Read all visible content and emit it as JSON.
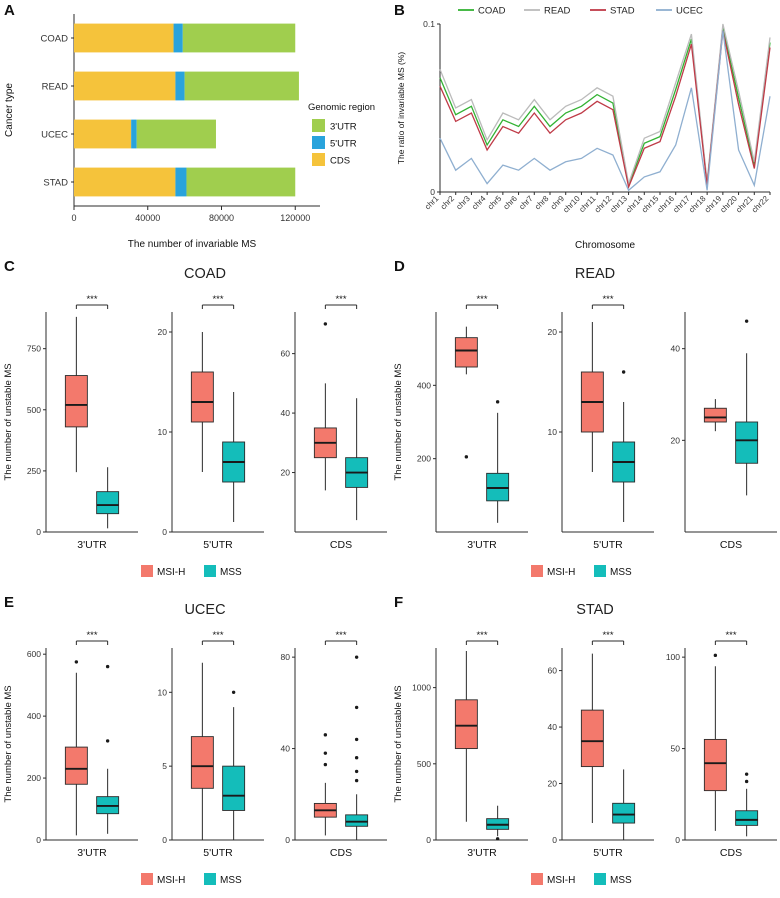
{
  "colors": {
    "msi_h": "#F3796C",
    "mss": "#14BDBA",
    "utr3": "#A0CE4E",
    "utr5": "#29A3DC",
    "cds": "#F5C33B",
    "axis": "#2b2b2b"
  },
  "chart_data": [
    {
      "panel": "A",
      "type": "stacked_bar_h",
      "xlabel": "The number of invariable MS",
      "ylabel": "Cancer type",
      "legend_title": "Genomic region",
      "legend_order": [
        "3'UTR",
        "5'UTR",
        "CDS"
      ],
      "categories": [
        "COAD",
        "READ",
        "UCEC",
        "STAD"
      ],
      "series": [
        {
          "name": "CDS",
          "color": "#F5C33B",
          "values": [
            54000,
            55000,
            31000,
            55000
          ]
        },
        {
          "name": "5'UTR",
          "color": "#29A3DC",
          "values": [
            5000,
            5000,
            3000,
            6000
          ]
        },
        {
          "name": "3'UTR",
          "color": "#A0CE4E",
          "values": [
            61000,
            62000,
            43000,
            59000
          ]
        }
      ],
      "xticks": [
        0,
        40000,
        80000,
        120000
      ],
      "xlim": [
        0,
        128000
      ]
    },
    {
      "panel": "B",
      "type": "line",
      "xlabel": "Chromosome",
      "ylabel": "The ratio of invariable MS (%)",
      "ylim": [
        0,
        0.1
      ],
      "yticks": [
        0,
        0.1
      ],
      "categories": [
        "chr1",
        "chr2",
        "chr3",
        "chr4",
        "chr5",
        "chr6",
        "chr7",
        "chr8",
        "chr9",
        "chr10",
        "chr11",
        "chr12",
        "chr13",
        "chr14",
        "chr15",
        "chr16",
        "chr17",
        "chr18",
        "chr19",
        "chr20",
        "chr21",
        "chr22"
      ],
      "series": [
        {
          "name": "COAD",
          "color": "#33B233",
          "values": [
            0.068,
            0.046,
            0.051,
            0.028,
            0.043,
            0.039,
            0.051,
            0.039,
            0.047,
            0.051,
            0.058,
            0.053,
            0.004,
            0.029,
            0.033,
            0.061,
            0.091,
            0.005,
            0.098,
            0.056,
            0.016,
            0.089
          ]
        },
        {
          "name": "READ",
          "color": "#BBBBBB",
          "values": [
            0.073,
            0.05,
            0.055,
            0.031,
            0.047,
            0.043,
            0.055,
            0.043,
            0.051,
            0.055,
            0.062,
            0.057,
            0.005,
            0.032,
            0.036,
            0.065,
            0.094,
            0.006,
            0.1,
            0.06,
            0.018,
            0.092
          ]
        },
        {
          "name": "STAD",
          "color": "#BF3A47",
          "values": [
            0.063,
            0.042,
            0.047,
            0.025,
            0.039,
            0.035,
            0.047,
            0.035,
            0.043,
            0.047,
            0.054,
            0.049,
            0.003,
            0.026,
            0.03,
            0.057,
            0.088,
            0.004,
            0.096,
            0.052,
            0.014,
            0.086
          ]
        },
        {
          "name": "UCEC",
          "color": "#8FAFD0",
          "values": [
            0.032,
            0.013,
            0.02,
            0.005,
            0.016,
            0.013,
            0.02,
            0.013,
            0.018,
            0.02,
            0.026,
            0.022,
            0.001,
            0.009,
            0.012,
            0.028,
            0.062,
            0.001,
            0.096,
            0.025,
            0.004,
            0.057
          ]
        }
      ]
    },
    {
      "panel": "C",
      "type": "boxplot_group",
      "title": "COAD",
      "ylabel": "The number of unstable MS",
      "groups": [
        {
          "name": "MSI-H",
          "color": "#F3796C"
        },
        {
          "name": "MSS",
          "color": "#14BDBA"
        }
      ],
      "facets": [
        {
          "xlabel": "3'UTR",
          "ylim": [
            0,
            900
          ],
          "yticks": [
            0,
            250,
            500,
            750
          ],
          "significance": "***",
          "boxes": [
            {
              "group": "MSI-H",
              "low": 245,
              "q1": 430,
              "median": 520,
              "q3": 640,
              "high": 880,
              "outliers": []
            },
            {
              "group": "MSS",
              "low": 15,
              "q1": 75,
              "median": 110,
              "q3": 165,
              "high": 265,
              "outliers": []
            }
          ]
        },
        {
          "xlabel": "5'UTR",
          "ylim": [
            0,
            22
          ],
          "yticks": [
            0,
            10,
            20
          ],
          "significance": "***",
          "boxes": [
            {
              "group": "MSI-H",
              "low": 6,
              "q1": 11,
              "median": 13,
              "q3": 16,
              "high": 20,
              "outliers": []
            },
            {
              "group": "MSS",
              "low": 1,
              "q1": 5,
              "median": 7,
              "q3": 9,
              "high": 14,
              "outliers": []
            }
          ]
        },
        {
          "xlabel": "CDS",
          "ylim": [
            0,
            74
          ],
          "yticks": [
            20,
            40,
            60
          ],
          "significance": "***",
          "boxes": [
            {
              "group": "MSI-H",
              "low": 14,
              "q1": 25,
              "median": 30,
              "q3": 35,
              "high": 50,
              "outliers": [
                70
              ]
            },
            {
              "group": "MSS",
              "low": 4,
              "q1": 15,
              "median": 20,
              "q3": 25,
              "high": 45,
              "outliers": []
            }
          ]
        }
      ]
    },
    {
      "panel": "D",
      "type": "boxplot_group",
      "title": "READ",
      "ylabel": "The number of unstable MS",
      "groups": [
        {
          "name": "MSI-H",
          "color": "#F3796C"
        },
        {
          "name": "MSS",
          "color": "#14BDBA"
        }
      ],
      "facets": [
        {
          "xlabel": "3'UTR",
          "ylim": [
            0,
            600
          ],
          "yticks": [
            200,
            400
          ],
          "significance": "***",
          "boxes": [
            {
              "group": "MSI-H",
              "low": 430,
              "q1": 450,
              "median": 495,
              "q3": 530,
              "high": 560,
              "outliers": [
                205
              ]
            },
            {
              "group": "MSS",
              "low": 25,
              "q1": 85,
              "median": 120,
              "q3": 160,
              "high": 325,
              "outliers": [
                355
              ]
            }
          ]
        },
        {
          "xlabel": "5'UTR",
          "ylim": [
            0,
            22
          ],
          "yticks": [
            10,
            20
          ],
          "significance": "***",
          "boxes": [
            {
              "group": "MSI-H",
              "low": 6,
              "q1": 10,
              "median": 13,
              "q3": 16,
              "high": 21,
              "outliers": []
            },
            {
              "group": "MSS",
              "low": 1,
              "q1": 5,
              "median": 7,
              "q3": 9,
              "high": 13,
              "outliers": [
                16
              ]
            }
          ]
        },
        {
          "xlabel": "CDS",
          "ylim": [
            0,
            48
          ],
          "yticks": [
            20,
            40
          ],
          "significance": "",
          "boxes": [
            {
              "group": "MSI-H",
              "low": 22,
              "q1": 24,
              "median": 25,
              "q3": 27,
              "high": 29,
              "outliers": []
            },
            {
              "group": "MSS",
              "low": 8,
              "q1": 15,
              "median": 20,
              "q3": 24,
              "high": 39,
              "outliers": [
                46
              ]
            }
          ]
        }
      ]
    },
    {
      "panel": "E",
      "type": "boxplot_group",
      "title": "UCEC",
      "ylabel": "The number of unstable MS",
      "groups": [
        {
          "name": "MSI-H",
          "color": "#F3796C"
        },
        {
          "name": "MSS",
          "color": "#14BDBA"
        }
      ],
      "facets": [
        {
          "xlabel": "3'UTR",
          "ylim": [
            0,
            620
          ],
          "yticks": [
            0,
            200,
            400,
            600
          ],
          "significance": "***",
          "boxes": [
            {
              "group": "MSI-H",
              "low": 15,
              "q1": 180,
              "median": 230,
              "q3": 300,
              "high": 540,
              "outliers": [
                575
              ]
            },
            {
              "group": "MSS",
              "low": 20,
              "q1": 85,
              "median": 110,
              "q3": 140,
              "high": 230,
              "outliers": [
                320,
                560
              ]
            }
          ]
        },
        {
          "xlabel": "5'UTR",
          "ylim": [
            0,
            13
          ],
          "yticks": [
            0,
            5,
            10
          ],
          "significance": "***",
          "boxes": [
            {
              "group": "MSI-H",
              "low": 0,
              "q1": 3.5,
              "median": 5,
              "q3": 7,
              "high": 12,
              "outliers": []
            },
            {
              "group": "MSS",
              "low": 0,
              "q1": 2,
              "median": 3,
              "q3": 5,
              "high": 9,
              "outliers": [
                10
              ]
            }
          ]
        },
        {
          "xlabel": "CDS",
          "ylim": [
            0,
            84
          ],
          "yticks": [
            0,
            40,
            80
          ],
          "significance": "***",
          "boxes": [
            {
              "group": "MSI-H",
              "low": 2,
              "q1": 10,
              "median": 13,
              "q3": 16,
              "high": 25,
              "outliers": [
                33,
                38,
                46
              ]
            },
            {
              "group": "MSS",
              "low": 0,
              "q1": 6,
              "median": 8,
              "q3": 11,
              "high": 20,
              "outliers": [
                26,
                30,
                36,
                44,
                58,
                80
              ]
            }
          ]
        }
      ]
    },
    {
      "panel": "F",
      "type": "boxplot_group",
      "title": "STAD",
      "ylabel": "The number of unstable MS",
      "groups": [
        {
          "name": "MSI-H",
          "color": "#F3796C"
        },
        {
          "name": "MSS",
          "color": "#14BDBA"
        }
      ],
      "facets": [
        {
          "xlabel": "3'UTR",
          "ylim": [
            0,
            1260
          ],
          "yticks": [
            0,
            500,
            1000
          ],
          "significance": "***",
          "boxes": [
            {
              "group": "MSI-H",
              "low": 120,
              "q1": 600,
              "median": 750,
              "q3": 920,
              "high": 1240,
              "outliers": []
            },
            {
              "group": "MSS",
              "low": 25,
              "q1": 70,
              "median": 100,
              "q3": 140,
              "high": 225,
              "outliers": [
                8
              ]
            }
          ]
        },
        {
          "xlabel": "5'UTR",
          "ylim": [
            0,
            68
          ],
          "yticks": [
            0,
            20,
            40,
            60
          ],
          "significance": "***",
          "boxes": [
            {
              "group": "MSI-H",
              "low": 6,
              "q1": 26,
              "median": 35,
              "q3": 46,
              "high": 66,
              "outliers": []
            },
            {
              "group": "MSS",
              "low": 0,
              "q1": 6,
              "median": 9,
              "q3": 13,
              "high": 25,
              "outliers": []
            }
          ]
        },
        {
          "xlabel": "CDS",
          "ylim": [
            0,
            105
          ],
          "yticks": [
            0,
            50,
            100
          ],
          "significance": "***",
          "boxes": [
            {
              "group": "MSI-H",
              "low": 5,
              "q1": 27,
              "median": 42,
              "q3": 55,
              "high": 95,
              "outliers": [
                101
              ]
            },
            {
              "group": "MSS",
              "low": 2,
              "q1": 8,
              "median": 11,
              "q3": 16,
              "high": 28,
              "outliers": [
                32,
                36
              ]
            }
          ]
        }
      ]
    }
  ]
}
